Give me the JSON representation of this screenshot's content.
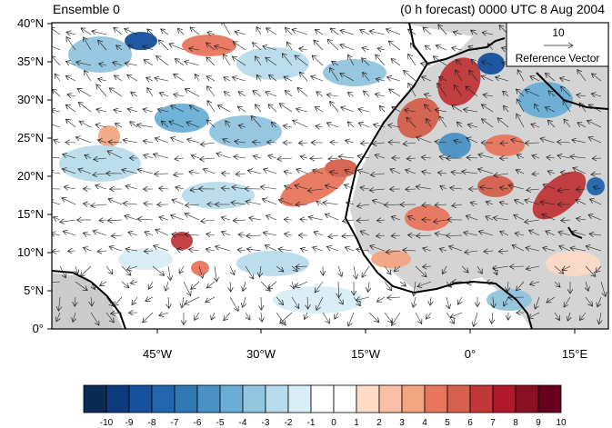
{
  "title_left": "Ensemble 0",
  "title_right": "(0 h forecast) 0000 UTC 8 Aug 2004",
  "reference_vector": {
    "magnitude": "10",
    "label": "Reference Vector"
  },
  "map": {
    "lon_range": [
      -60,
      20
    ],
    "lat_range": [
      0,
      40
    ],
    "lat_ticks": [
      "0°",
      "5°N",
      "10°N",
      "15°N",
      "20°N",
      "25°N",
      "30°N",
      "35°N",
      "40°N"
    ],
    "lon_ticks": [
      "45°W",
      "30°W",
      "15°W",
      "0°",
      "15°E"
    ],
    "land_color": "#cccccc",
    "ocean_color": "#ffffff"
  },
  "colorbar": {
    "labels": [
      "-10",
      "-9",
      "-8",
      "-7",
      "-6",
      "-5",
      "-4",
      "-3",
      "-2",
      "-1",
      "0",
      "1",
      "2",
      "3",
      "4",
      "5",
      "6",
      "7",
      "8",
      "9",
      "10"
    ],
    "colors": [
      "#0a2b55",
      "#0c3b7d",
      "#15519e",
      "#2166ac",
      "#2f79b5",
      "#4a92c6",
      "#6aaed6",
      "#92c5de",
      "#b9dcec",
      "#d9eef6",
      "#ffffff",
      "#ffffff",
      "#fddbc7",
      "#f9c0a6",
      "#f4a582",
      "#e8765d",
      "#d6604d",
      "#c1373a",
      "#b2182b",
      "#8a0f20",
      "#67001f"
    ]
  }
}
